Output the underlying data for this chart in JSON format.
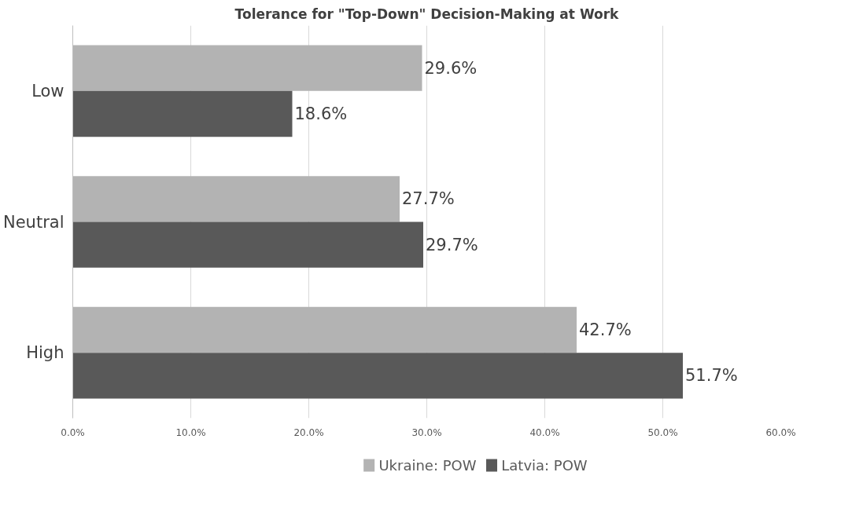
{
  "chart_data": {
    "type": "bar",
    "orientation": "horizontal",
    "title": "Tolerance for \"Top-Down\" Decision-Making at Work",
    "categories": [
      "Low",
      "Neutral",
      "High"
    ],
    "series": [
      {
        "name": "Ukraine: POW",
        "color": "#b3b3b3",
        "values": [
          29.6,
          27.7,
          42.7
        ],
        "value_labels": [
          "29.6%",
          "27.7%",
          "42.7%"
        ]
      },
      {
        "name": "Latvia: POW",
        "color": "#595959",
        "values": [
          18.6,
          29.7,
          51.7
        ],
        "value_labels": [
          "18.6%",
          "29.7%",
          "51.7%"
        ]
      }
    ],
    "xlim": [
      0,
      60
    ],
    "xticks": [
      {
        "value": 0,
        "label": "0.0%"
      },
      {
        "value": 10,
        "label": "10.0%"
      },
      {
        "value": 20,
        "label": "20.0%"
      },
      {
        "value": 30,
        "label": "30.0%"
      },
      {
        "value": 40,
        "label": "40.0%"
      },
      {
        "value": 50,
        "label": "50.0%"
      },
      {
        "value": 60,
        "label": "60.0%"
      }
    ],
    "grid": "x",
    "legend": "bottom"
  }
}
